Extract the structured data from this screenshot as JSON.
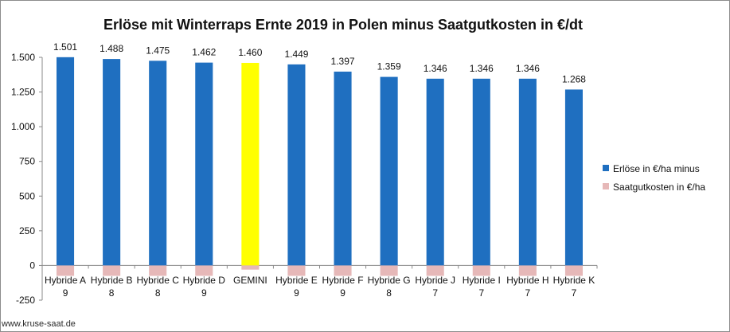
{
  "chart_data": {
    "type": "bar",
    "title": "Erlöse mit Winterraps Ernte 2019 in Polen minus Saatgutkosten in €/dt",
    "categories": [
      [
        "Hybride A",
        "9"
      ],
      [
        "Hybride B",
        "8"
      ],
      [
        "Hybride C",
        "8"
      ],
      [
        "Hybride D",
        "9"
      ],
      [
        "GEMINI",
        ""
      ],
      [
        "Hybride E",
        "9"
      ],
      [
        "Hybride F",
        "9"
      ],
      [
        "Hybride G",
        "8"
      ],
      [
        "Hybride J",
        "7"
      ],
      [
        "Hybride I",
        "7"
      ],
      [
        "Hybride H",
        "7"
      ],
      [
        "Hybride K",
        "7"
      ]
    ],
    "data_labels": [
      "1.501",
      "1.488",
      "1.475",
      "1.462",
      "1.460",
      "1.449",
      "1.397",
      "1.359",
      "1.346",
      "1.346",
      "1.346",
      "1.268"
    ],
    "series": [
      {
        "name": "Erlöse in €/ha minus",
        "color": "#1f6fc0",
        "highlight_color": "#ffff00",
        "highlight_index": 4,
        "values": [
          1501,
          1488,
          1475,
          1462,
          1460,
          1449,
          1397,
          1359,
          1346,
          1346,
          1346,
          1268
        ]
      },
      {
        "name": "Saatgutkosten in €/ha",
        "color": "#e6b8b8",
        "values": [
          -75,
          -75,
          -75,
          -75,
          -30,
          -75,
          -75,
          -75,
          -75,
          -75,
          -75,
          -75
        ]
      }
    ],
    "ylim": [
      -250,
      1500
    ],
    "yticks": [
      -250,
      0,
      250,
      500,
      750,
      1000,
      1250,
      1500
    ],
    "ytick_labels": [
      "-250",
      "0",
      "250",
      "500",
      "750",
      "1.000",
      "1.250",
      "1.500"
    ],
    "grid": false,
    "legend_position": "right"
  },
  "watermark": "www.kruse-saat.de"
}
